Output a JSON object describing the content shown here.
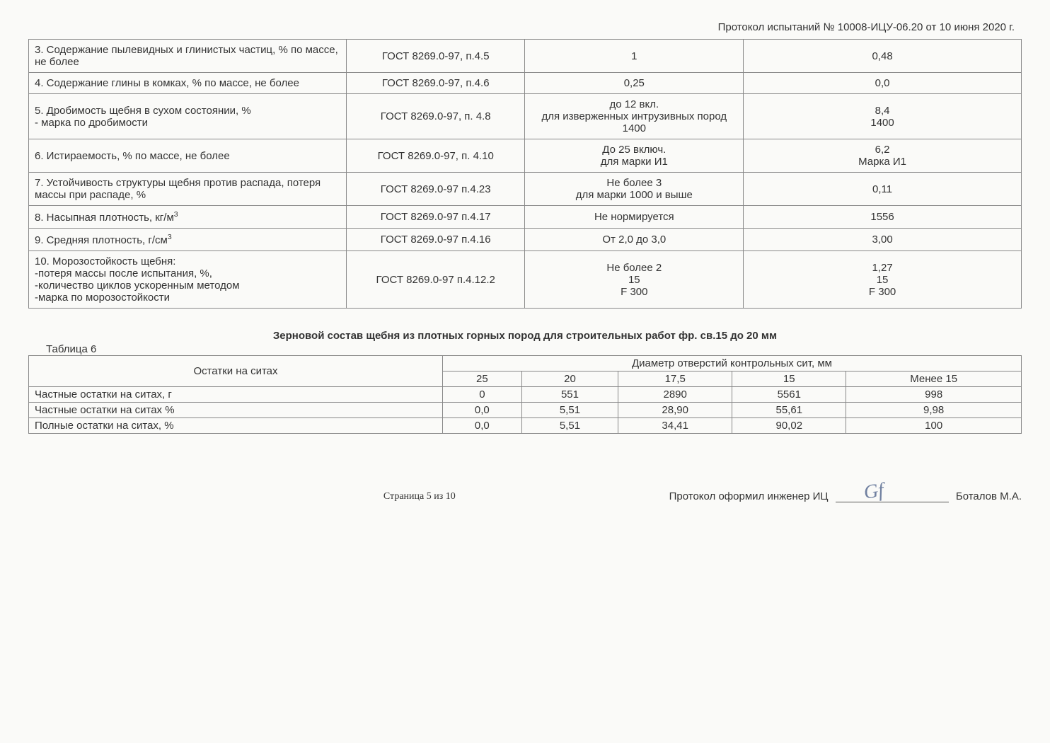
{
  "header": {
    "protocol_line": "Протокол испытаний № 10008-ИЦУ-06.20 от 10 июня 2020 г."
  },
  "main_table": {
    "rows": [
      {
        "param": "3. Содержание пылевидных и глинистых частиц, % по массе, не более",
        "method": "ГОСТ 8269.0-97, п.4.5",
        "norm": "1",
        "result": "0,48"
      },
      {
        "param": "4. Содержание глины в комках,  % по массе, не более",
        "method": "ГОСТ 8269.0-97, п.4.6",
        "norm": "0,25",
        "result": "0,0"
      },
      {
        "param": "5. Дробимость щебня в сухом состоянии, %\n- марка по дробимости",
        "method": "ГОСТ 8269.0-97, п. 4.8",
        "norm": "до 12 вкл.\nдля изверженных интрузивных пород\n1400",
        "result": "8,4\n1400"
      },
      {
        "param": "6. Истираемость, % по массе, не более",
        "method": "ГОСТ 8269.0-97, п. 4.10",
        "norm": "До 25 включ.\nдля марки И1",
        "result": "6,2\nМарка И1"
      },
      {
        "param": "7. Устойчивость структуры щебня против распада, потеря массы при распаде, %",
        "method": "ГОСТ 8269.0-97 п.4.23",
        "norm": "Не более 3\nдля марки 1000 и выше",
        "result": "0,11"
      },
      {
        "param_html": "8. Насыпная плотность, кг/м<sup>3</sup>",
        "method": "ГОСТ 8269.0-97 п.4.17",
        "norm": "Не нормируется",
        "result": "1556"
      },
      {
        "param_html": "9. Средняя плотность, г/см<sup>3</sup>",
        "method": "ГОСТ 8269.0-97 п.4.16",
        "norm": "От 2,0 до 3,0",
        "result": "3,00"
      },
      {
        "param": "10. Морозостойкость щебня:\n-потеря массы после испытания, %,\n-количество циклов ускоренным методом\n-марка по морозостойкости",
        "method": "ГОСТ 8269.0-97 п.4.12.2",
        "norm": "Не более 2\n15\nF 300",
        "result": "1,27\n15\nF 300"
      }
    ]
  },
  "section": {
    "title": "Зерновой состав щебня из плотных горных пород для строительных работ фр. св.15 до 20 мм",
    "table_label": "Таблица 6"
  },
  "sieve_table": {
    "row_header_label": "Остатки на ситах",
    "col_header_label": "Диаметр отверстий контрольных сит, мм",
    "sieve_sizes": [
      "25",
      "20",
      "17,5",
      "15",
      "Менее 15"
    ],
    "rows": [
      {
        "label": "Частные остатки на ситах, г",
        "values": [
          "0",
          "551",
          "2890",
          "5561",
          "998"
        ]
      },
      {
        "label": "Частные остатки на ситах %",
        "values": [
          "0,0",
          "5,51",
          "28,90",
          "55,61",
          "9,98"
        ]
      },
      {
        "label": "Полные остатки на ситах, %",
        "values": [
          "0,0",
          "5,51",
          "34,41",
          "90,02",
          "100"
        ]
      }
    ]
  },
  "footer": {
    "page_label": "Страница 5 из 10",
    "engineer_label": "Протокол оформил инженер ИЦ",
    "engineer_name": "Боталов М.А."
  }
}
